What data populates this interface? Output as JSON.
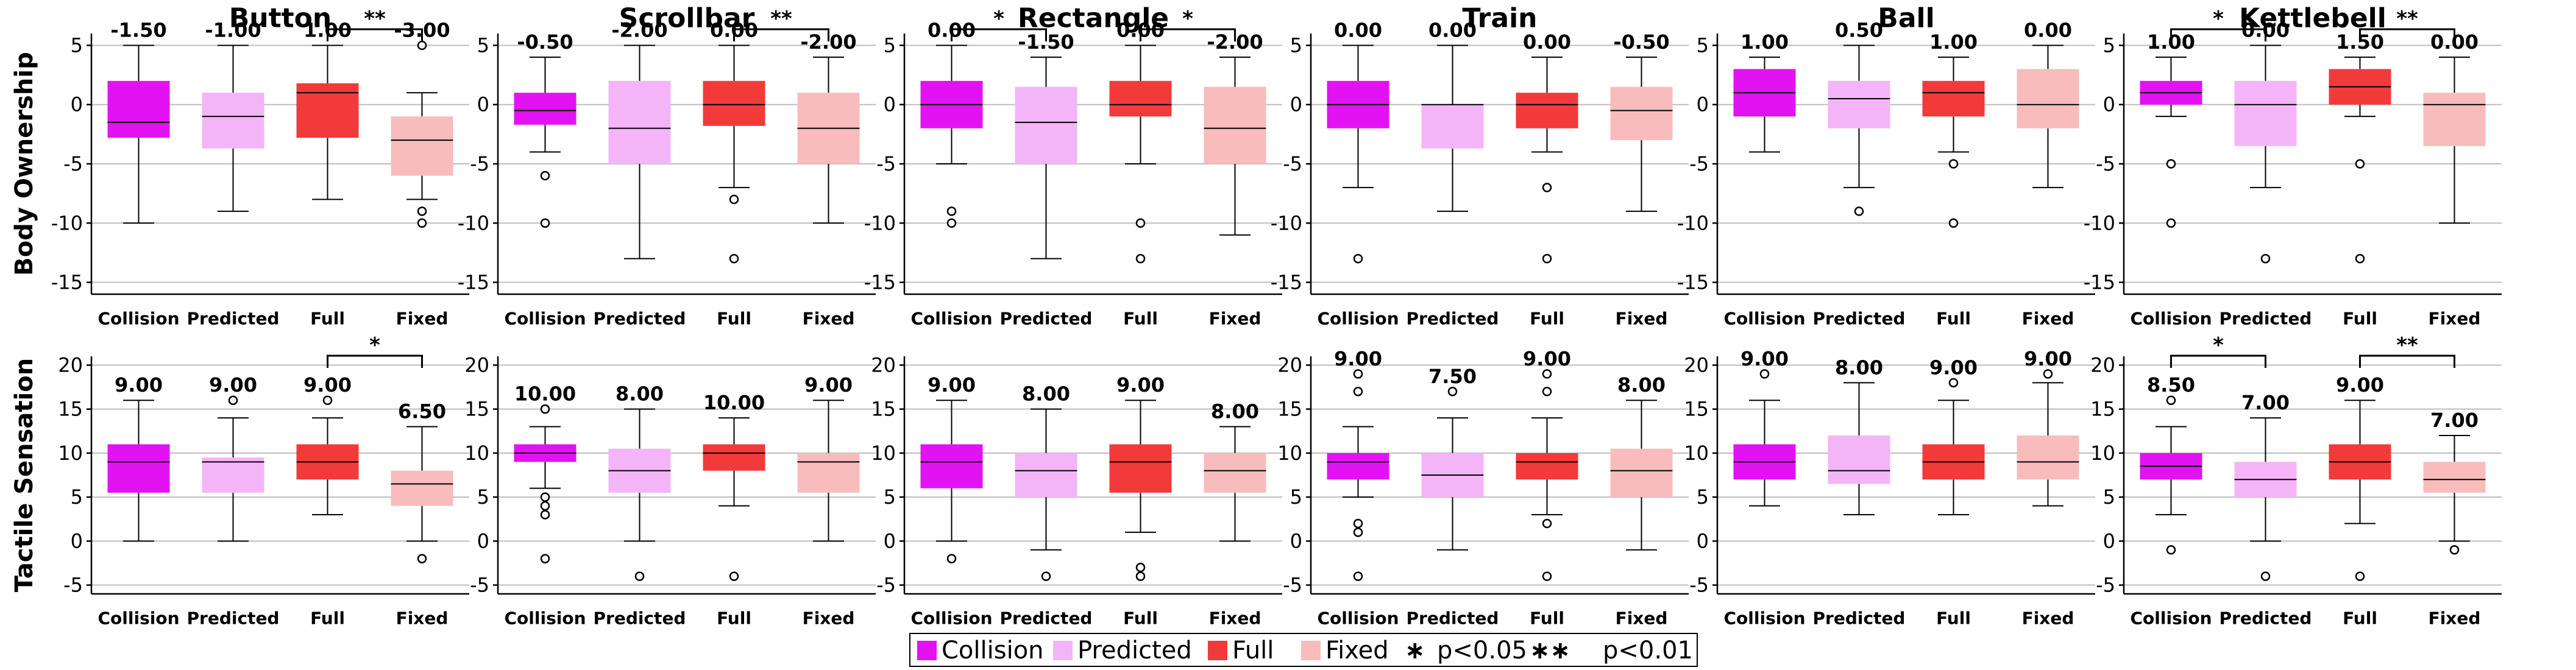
{
  "colors": {
    "Collision": "#e312f2",
    "Predicted": "#f4b4f8",
    "Full": "#f23a3a",
    "Fixed": "#f8bcbc",
    "grid": "#bdbdbd"
  },
  "legend": {
    "items": [
      "Collision",
      "Predicted",
      "Full",
      "Fixed"
    ],
    "sig_items": [
      {
        "stars": "∗",
        "label": "p<0.05"
      },
      {
        "stars": "∗∗",
        "label": "p<0.01"
      }
    ]
  },
  "chart_data": {
    "type": "boxplot",
    "rows": [
      {
        "ylabel": "Body Ownership",
        "ylim": [
          -16,
          6
        ],
        "yticks": [
          -15,
          -10,
          -5,
          0,
          5
        ],
        "panels": [
          {
            "title": "Button",
            "categories": [
              "Collision",
              "Predicted",
              "Full",
              "Fixed"
            ],
            "boxes": [
              {
                "min": -10,
                "q1": -2.8,
                "median": -1.5,
                "q3": 2,
                "max": 5,
                "outliers": []
              },
              {
                "min": -9,
                "q1": -3.7,
                "median": -1.0,
                "q3": 1,
                "max": 5,
                "outliers": []
              },
              {
                "min": -8,
                "q1": -2.8,
                "median": 1.0,
                "q3": 1.8,
                "max": 5,
                "outliers": []
              },
              {
                "min": -8,
                "q1": -6,
                "median": -3.0,
                "q3": -1,
                "max": 1,
                "outliers": [
                  5,
                  -9,
                  -10
                ]
              }
            ],
            "median_labels": [
              "-1.50",
              "-1.00",
              "1.00",
              "-3.00"
            ],
            "sig": [
              {
                "from": 2,
                "to": 3,
                "label": "**"
              }
            ]
          },
          {
            "title": "Scrollbar",
            "categories": [
              "Collision",
              "Predicted",
              "Full",
              "Fixed"
            ],
            "boxes": [
              {
                "min": -4,
                "q1": -1.7,
                "median": -0.5,
                "q3": 1,
                "max": 4,
                "outliers": [
                  -6,
                  -10
                ]
              },
              {
                "min": -13,
                "q1": -5,
                "median": -2.0,
                "q3": 2,
                "max": 5,
                "outliers": []
              },
              {
                "min": -7,
                "q1": -1.8,
                "median": 0.0,
                "q3": 2,
                "max": 5,
                "outliers": [
                  -8,
                  -13
                ]
              },
              {
                "min": -10,
                "q1": -5,
                "median": -2.0,
                "q3": 1,
                "max": 4,
                "outliers": []
              }
            ],
            "median_labels": [
              "-0.50",
              "-2.00",
              "0.00",
              "-2.00"
            ],
            "sig": [
              {
                "from": 2,
                "to": 3,
                "label": "**"
              }
            ]
          },
          {
            "title": "Rectangle",
            "categories": [
              "Collision",
              "Predicted",
              "Full",
              "Fixed"
            ],
            "boxes": [
              {
                "min": -5,
                "q1": -2,
                "median": 0.0,
                "q3": 2,
                "max": 5,
                "outliers": [
                  -9,
                  -10
                ]
              },
              {
                "min": -13,
                "q1": -5,
                "median": -1.5,
                "q3": 1.5,
                "max": 4,
                "outliers": []
              },
              {
                "min": -5,
                "q1": -1,
                "median": 0.0,
                "q3": 2,
                "max": 5,
                "outliers": [
                  -10,
                  -13
                ]
              },
              {
                "min": -11,
                "q1": -5,
                "median": -2.0,
                "q3": 1.5,
                "max": 4,
                "outliers": []
              }
            ],
            "median_labels": [
              "0.00",
              "-1.50",
              "0.00",
              "-2.00"
            ],
            "sig": [
              {
                "from": 0,
                "to": 1,
                "label": "*"
              },
              {
                "from": 2,
                "to": 3,
                "label": "*"
              }
            ]
          },
          {
            "title": "Train",
            "categories": [
              "Collision",
              "Predicted",
              "Full",
              "Fixed"
            ],
            "boxes": [
              {
                "min": -7,
                "q1": -2,
                "median": 0.0,
                "q3": 2,
                "max": 5,
                "outliers": [
                  -13
                ]
              },
              {
                "min": -9,
                "q1": -3.7,
                "median": 0.0,
                "q3": 0,
                "max": 5,
                "outliers": []
              },
              {
                "min": -4,
                "q1": -2,
                "median": 0.0,
                "q3": 1,
                "max": 4,
                "outliers": [
                  -7,
                  -13
                ]
              },
              {
                "min": -9,
                "q1": -3,
                "median": -0.5,
                "q3": 1.5,
                "max": 4,
                "outliers": []
              }
            ],
            "median_labels": [
              "0.00",
              "0.00",
              "0.00",
              "-0.50"
            ],
            "sig": []
          },
          {
            "title": "Ball",
            "categories": [
              "Collision",
              "Predicted",
              "Full",
              "Fixed"
            ],
            "boxes": [
              {
                "min": -4,
                "q1": -1,
                "median": 1.0,
                "q3": 3,
                "max": 4,
                "outliers": []
              },
              {
                "min": -7,
                "q1": -2,
                "median": 0.5,
                "q3": 2,
                "max": 5,
                "outliers": [
                  -9
                ]
              },
              {
                "min": -4,
                "q1": -1,
                "median": 1.0,
                "q3": 2,
                "max": 4,
                "outliers": [
                  -5,
                  -10
                ]
              },
              {
                "min": -7,
                "q1": -2,
                "median": 0.0,
                "q3": 3,
                "max": 5,
                "outliers": []
              }
            ],
            "median_labels": [
              "1.00",
              "0.50",
              "1.00",
              "0.00"
            ],
            "sig": []
          },
          {
            "title": "Kettlebell",
            "categories": [
              "Collision",
              "Predicted",
              "Full",
              "Fixed"
            ],
            "boxes": [
              {
                "min": -1,
                "q1": 0,
                "median": 1.0,
                "q3": 2,
                "max": 4,
                "outliers": [
                  -5,
                  -10
                ]
              },
              {
                "min": -7,
                "q1": -3.5,
                "median": 0.0,
                "q3": 2,
                "max": 5,
                "outliers": [
                  -13
                ]
              },
              {
                "min": -1,
                "q1": 0,
                "median": 1.5,
                "q3": 3,
                "max": 4,
                "outliers": [
                  -5,
                  -13
                ]
              },
              {
                "min": -10,
                "q1": -3.5,
                "median": 0.0,
                "q3": 1,
                "max": 4,
                "outliers": []
              }
            ],
            "median_labels": [
              "1.00",
              "0.00",
              "1.50",
              "0.00"
            ],
            "sig": [
              {
                "from": 0,
                "to": 1,
                "label": "*"
              },
              {
                "from": 2,
                "to": 3,
                "label": "**"
              }
            ]
          }
        ]
      },
      {
        "ylabel": "Tactile Sensation",
        "ylim": [
          -6,
          21
        ],
        "yticks": [
          -5,
          0,
          5,
          10,
          15,
          20
        ],
        "panels": [
          {
            "title": "Button",
            "categories": [
              "Collision",
              "Predicted",
              "Full",
              "Fixed"
            ],
            "boxes": [
              {
                "min": 0,
                "q1": 5.5,
                "median": 9.0,
                "q3": 11,
                "max": 16,
                "outliers": []
              },
              {
                "min": 0,
                "q1": 5.5,
                "median": 9.0,
                "q3": 9.5,
                "max": 14,
                "outliers": [
                  16
                ]
              },
              {
                "min": 3,
                "q1": 7,
                "median": 9.0,
                "q3": 11,
                "max": 14,
                "outliers": [
                  16
                ]
              },
              {
                "min": 0,
                "q1": 4,
                "median": 6.5,
                "q3": 8,
                "max": 13,
                "outliers": [
                  -2
                ]
              }
            ],
            "median_labels": [
              "9.00",
              "9.00",
              "9.00",
              "6.50"
            ],
            "sig": [
              {
                "from": 2,
                "to": 3,
                "label": "*"
              }
            ]
          },
          {
            "title": "Scrollbar",
            "categories": [
              "Collision",
              "Predicted",
              "Full",
              "Fixed"
            ],
            "boxes": [
              {
                "min": 6,
                "q1": 9,
                "median": 10.0,
                "q3": 11,
                "max": 13,
                "outliers": [
                  15,
                  5,
                  4,
                  3,
                  -2
                ]
              },
              {
                "min": 0,
                "q1": 5.5,
                "median": 8.0,
                "q3": 10.5,
                "max": 15,
                "outliers": [
                  -4
                ]
              },
              {
                "min": 4,
                "q1": 8,
                "median": 10.0,
                "q3": 11,
                "max": 14,
                "outliers": [
                  -4
                ]
              },
              {
                "min": 0,
                "q1": 5.5,
                "median": 9.0,
                "q3": 10,
                "max": 16,
                "outliers": []
              }
            ],
            "median_labels": [
              "10.00",
              "8.00",
              "10.00",
              "9.00"
            ],
            "sig": []
          },
          {
            "title": "Rectangle",
            "categories": [
              "Collision",
              "Predicted",
              "Full",
              "Fixed"
            ],
            "boxes": [
              {
                "min": 0,
                "q1": 6,
                "median": 9.0,
                "q3": 11,
                "max": 16,
                "outliers": [
                  -2
                ]
              },
              {
                "min": -1,
                "q1": 5,
                "median": 8.0,
                "q3": 10,
                "max": 15,
                "outliers": [
                  -4
                ]
              },
              {
                "min": 1,
                "q1": 5.5,
                "median": 9.0,
                "q3": 11,
                "max": 16,
                "outliers": [
                  -3,
                  -4
                ]
              },
              {
                "min": 0,
                "q1": 5.5,
                "median": 8.0,
                "q3": 10,
                "max": 13,
                "outliers": []
              }
            ],
            "median_labels": [
              "9.00",
              "8.00",
              "9.00",
              "8.00"
            ],
            "sig": []
          },
          {
            "title": "Train",
            "categories": [
              "Collision",
              "Predicted",
              "Full",
              "Fixed"
            ],
            "boxes": [
              {
                "min": 5,
                "q1": 7,
                "median": 9.0,
                "q3": 10,
                "max": 13,
                "outliers": [
                  19,
                  17,
                  2,
                  1,
                  -4
                ]
              },
              {
                "min": -1,
                "q1": 5,
                "median": 7.5,
                "q3": 10,
                "max": 14,
                "outliers": [
                  17
                ]
              },
              {
                "min": 3,
                "q1": 7,
                "median": 9.0,
                "q3": 10,
                "max": 14,
                "outliers": [
                  19,
                  17,
                  2,
                  -4
                ]
              },
              {
                "min": -1,
                "q1": 5,
                "median": 8.0,
                "q3": 10.5,
                "max": 16,
                "outliers": []
              }
            ],
            "median_labels": [
              "9.00",
              "7.50",
              "9.00",
              "8.00"
            ],
            "sig": []
          },
          {
            "title": "Ball",
            "categories": [
              "Collision",
              "Predicted",
              "Full",
              "Fixed"
            ],
            "boxes": [
              {
                "min": 4,
                "q1": 7,
                "median": 9.0,
                "q3": 11,
                "max": 16,
                "outliers": [
                  19
                ]
              },
              {
                "min": 3,
                "q1": 6.5,
                "median": 8.0,
                "q3": 12,
                "max": 18,
                "outliers": []
              },
              {
                "min": 3,
                "q1": 7,
                "median": 9.0,
                "q3": 11,
                "max": 16,
                "outliers": [
                  18
                ]
              },
              {
                "min": 4,
                "q1": 7,
                "median": 9.0,
                "q3": 12,
                "max": 18,
                "outliers": [
                  19
                ]
              }
            ],
            "median_labels": [
              "9.00",
              "8.00",
              "9.00",
              "9.00"
            ],
            "sig": []
          },
          {
            "title": "Kettlebell",
            "categories": [
              "Collision",
              "Predicted",
              "Full",
              "Fixed"
            ],
            "boxes": [
              {
                "min": 3,
                "q1": 7,
                "median": 8.5,
                "q3": 10,
                "max": 13,
                "outliers": [
                  16,
                  -1
                ]
              },
              {
                "min": 0,
                "q1": 5,
                "median": 7.0,
                "q3": 9,
                "max": 14,
                "outliers": [
                  -4
                ]
              },
              {
                "min": 2,
                "q1": 7,
                "median": 9.0,
                "q3": 11,
                "max": 16,
                "outliers": [
                  -4
                ]
              },
              {
                "min": 0,
                "q1": 5.5,
                "median": 7.0,
                "q3": 9,
                "max": 12,
                "outliers": [
                  -1
                ]
              }
            ],
            "median_labels": [
              "8.50",
              "7.00",
              "9.00",
              "7.00"
            ],
            "sig": [
              {
                "from": 0,
                "to": 1,
                "label": "*"
              },
              {
                "from": 2,
                "to": 3,
                "label": "**"
              }
            ]
          }
        ]
      }
    ]
  }
}
